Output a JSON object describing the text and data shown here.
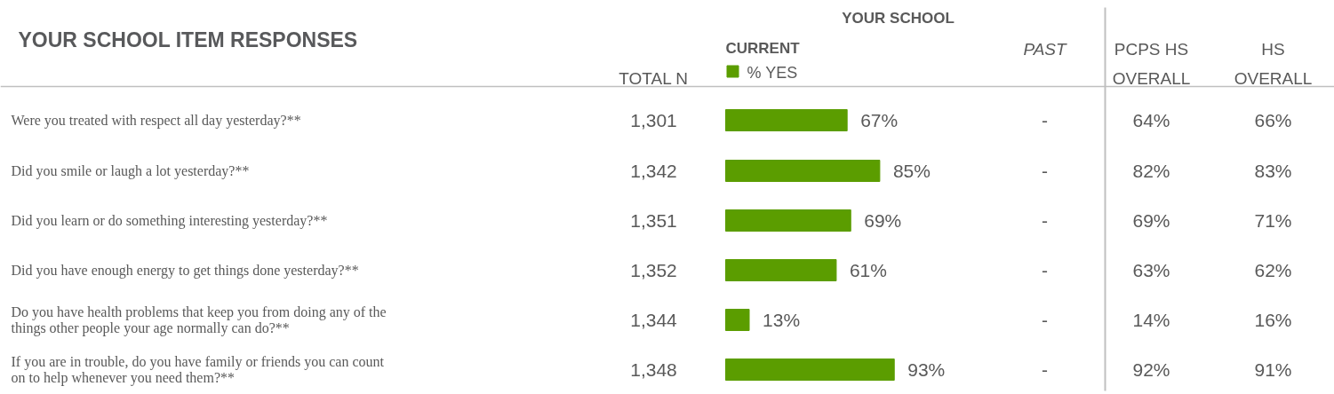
{
  "chart_data": {
    "type": "bar",
    "orientation": "horizontal",
    "title": "YOUR SCHOOL ITEM RESPONSES",
    "subtitle": "YOUR SCHOOL",
    "legend_title": "CURRENT",
    "legend": "top",
    "categories": [
      "Were you treated with respect all day yesterday?**",
      "Did you smile or laugh a lot yesterday?**",
      "Did you learn or do something interesting yesterday?**",
      "Did you have enough energy to get things done yesterday?**",
      "Do you have health problems that keep you from doing any of the things other people your age normally can do?**",
      "If you are in trouble, do you have family or friends you can count on to help whenever you need them?**"
    ],
    "series": [
      {
        "name": "% YES",
        "color": "#5b9d00",
        "values": [
          67,
          85,
          69,
          61,
          13,
          93
        ],
        "value_labels": [
          "67%",
          "85%",
          "69%",
          "61%",
          "13%",
          "93%"
        ]
      }
    ],
    "annotations": [
      "TOTAL N",
      "PAST",
      "PCPS HS OVERALL",
      "HS OVERALL",
      "1,301",
      "-",
      "64%",
      "66%",
      "1,342",
      "-",
      "82%",
      "83%",
      "1,351",
      "-",
      "69%",
      "71%",
      "1,352",
      "-",
      "63%",
      "62%",
      "1,344",
      "-",
      "14%",
      "16%",
      "1,348",
      "-",
      "92%",
      "91%"
    ]
  }
}
